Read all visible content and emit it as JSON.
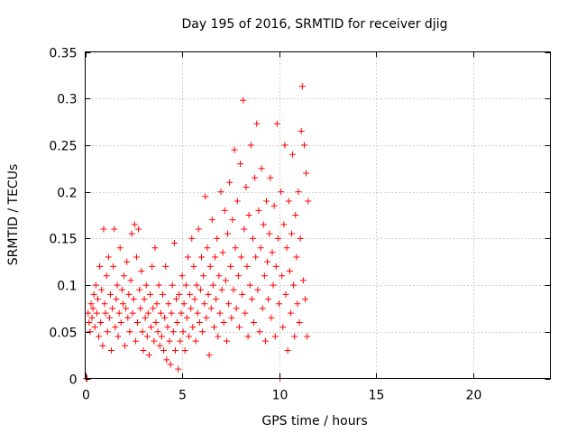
{
  "chart_data": {
    "type": "scatter",
    "title": "Day 195 of 2016, SRMTID for receiver djig",
    "xlabel": "GPS time / hours",
    "ylabel": "SRMTID / TECUs",
    "xlim": [
      0,
      24
    ],
    "ylim": [
      0,
      0.35
    ],
    "grid": true,
    "marker": "+",
    "color": "#ff0000",
    "x_ticks": [
      0,
      5,
      10,
      15,
      20
    ],
    "x_tick_labels": [
      "0",
      "5",
      "10",
      "15",
      "20"
    ],
    "y_ticks": [
      0,
      0.05,
      0.1,
      0.15,
      0.2,
      0.25,
      0.3,
      0.35
    ],
    "y_tick_labels": [
      "0",
      "0.05",
      "0.1",
      "0.15",
      "0.2",
      "0.25",
      "0.3",
      "0.35"
    ],
    "series": [
      {
        "name": "SRMTID",
        "points": [
          [
            0.05,
            0.0
          ],
          [
            0.1,
            0.0
          ],
          [
            0.15,
            0.07
          ],
          [
            0.2,
            0.06
          ],
          [
            0.25,
            0.05
          ],
          [
            0.3,
            0.08
          ],
          [
            0.35,
            0.065
          ],
          [
            0.4,
            0.075
          ],
          [
            0.45,
            0.09
          ],
          [
            0.5,
            0.055
          ],
          [
            0.55,
            0.1
          ],
          [
            0.6,
            0.07
          ],
          [
            0.65,
            0.085
          ],
          [
            0.7,
            0.045
          ],
          [
            0.75,
            0.12
          ],
          [
            0.8,
            0.06
          ],
          [
            0.85,
            0.095
          ],
          [
            0.9,
            0.035
          ],
          [
            0.95,
            0.16
          ],
          [
            1.0,
            0.08
          ],
          [
            1.05,
            0.07
          ],
          [
            1.1,
            0.11
          ],
          [
            1.15,
            0.05
          ],
          [
            1.2,
            0.13
          ],
          [
            1.25,
            0.065
          ],
          [
            1.3,
            0.09
          ],
          [
            1.35,
            0.03
          ],
          [
            1.4,
            0.075
          ],
          [
            1.45,
            0.12
          ],
          [
            1.5,
            0.16
          ],
          [
            1.55,
            0.055
          ],
          [
            1.6,
            0.085
          ],
          [
            1.65,
            0.1
          ],
          [
            1.7,
            0.045
          ],
          [
            1.75,
            0.07
          ],
          [
            1.8,
            0.14
          ],
          [
            1.85,
            0.06
          ],
          [
            1.9,
            0.095
          ],
          [
            1.95,
            0.08
          ],
          [
            2.0,
            0.11
          ],
          [
            2.05,
            0.035
          ],
          [
            2.1,
            0.075
          ],
          [
            2.15,
            0.125
          ],
          [
            2.2,
            0.065
          ],
          [
            2.25,
            0.09
          ],
          [
            2.3,
            0.05
          ],
          [
            2.35,
            0.105
          ],
          [
            2.4,
            0.155
          ],
          [
            2.45,
            0.07
          ],
          [
            2.5,
            0.085
          ],
          [
            2.55,
            0.165
          ],
          [
            2.6,
            0.04
          ],
          [
            2.65,
            0.13
          ],
          [
            2.7,
            0.06
          ],
          [
            2.75,
            0.16
          ],
          [
            2.8,
            0.095
          ],
          [
            2.85,
            0.075
          ],
          [
            2.9,
            0.115
          ],
          [
            2.95,
            0.05
          ],
          [
            3.0,
            0.03
          ],
          [
            3.05,
            0.085
          ],
          [
            3.1,
            0.065
          ],
          [
            3.15,
            0.1
          ],
          [
            3.2,
            0.045
          ],
          [
            3.25,
            0.07
          ],
          [
            3.3,
            0.025
          ],
          [
            3.35,
            0.09
          ],
          [
            3.4,
            0.055
          ],
          [
            3.45,
            0.12
          ],
          [
            3.5,
            0.075
          ],
          [
            3.55,
            0.04
          ],
          [
            3.6,
            0.14
          ],
          [
            3.65,
            0.06
          ],
          [
            3.7,
            0.08
          ],
          [
            3.75,
            0.05
          ],
          [
            3.8,
            0.1
          ],
          [
            3.85,
            0.035
          ],
          [
            3.9,
            0.07
          ],
          [
            3.95,
            0.045
          ],
          [
            4.0,
            0.09
          ],
          [
            4.05,
            0.03
          ],
          [
            4.1,
            0.065
          ],
          [
            4.15,
            0.12
          ],
          [
            4.2,
            0.02
          ],
          [
            4.25,
            0.055
          ],
          [
            4.3,
            0.08
          ],
          [
            4.35,
            0.04
          ],
          [
            4.4,
            0.015
          ],
          [
            4.45,
            0.07
          ],
          [
            4.5,
            0.1
          ],
          [
            4.55,
            0.05
          ],
          [
            4.6,
            0.145
          ],
          [
            4.65,
            0.03
          ],
          [
            4.7,
            0.085
          ],
          [
            4.75,
            0.06
          ],
          [
            4.8,
            0.01
          ],
          [
            4.85,
            0.09
          ],
          [
            4.9,
            0.04
          ],
          [
            4.95,
            0.07
          ],
          [
            5.0,
            0.11
          ],
          [
            5.05,
            0.05
          ],
          [
            5.1,
            0.08
          ],
          [
            5.15,
            0.03
          ],
          [
            5.2,
            0.1
          ],
          [
            5.25,
            0.065
          ],
          [
            5.3,
            0.13
          ],
          [
            5.35,
            0.045
          ],
          [
            5.4,
            0.09
          ],
          [
            5.45,
            0.075
          ],
          [
            5.5,
            0.15
          ],
          [
            5.55,
            0.055
          ],
          [
            5.6,
            0.12
          ],
          [
            5.65,
            0.085
          ],
          [
            5.7,
            0.04
          ],
          [
            5.75,
            0.1
          ],
          [
            5.8,
            0.07
          ],
          [
            5.85,
            0.16
          ],
          [
            5.9,
            0.06
          ],
          [
            5.95,
            0.095
          ],
          [
            6.0,
            0.13
          ],
          [
            6.05,
            0.05
          ],
          [
            6.1,
            0.11
          ],
          [
            6.15,
            0.08
          ],
          [
            6.2,
            0.195
          ],
          [
            6.25,
            0.065
          ],
          [
            6.3,
            0.14
          ],
          [
            6.35,
            0.09
          ],
          [
            6.4,
            0.025
          ],
          [
            6.45,
            0.12
          ],
          [
            6.5,
            0.075
          ],
          [
            6.55,
            0.17
          ],
          [
            6.6,
            0.1
          ],
          [
            6.65,
            0.055
          ],
          [
            6.7,
            0.13
          ],
          [
            6.75,
            0.085
          ],
          [
            6.8,
            0.15
          ],
          [
            6.85,
            0.045
          ],
          [
            6.9,
            0.11
          ],
          [
            6.95,
            0.07
          ],
          [
            7.0,
            0.2
          ],
          [
            7.05,
            0.095
          ],
          [
            7.1,
            0.135
          ],
          [
            7.15,
            0.06
          ],
          [
            7.2,
            0.18
          ],
          [
            7.25,
            0.105
          ],
          [
            7.3,
            0.04
          ],
          [
            7.35,
            0.155
          ],
          [
            7.4,
            0.08
          ],
          [
            7.45,
            0.21
          ],
          [
            7.5,
            0.12
          ],
          [
            7.55,
            0.065
          ],
          [
            7.6,
            0.17
          ],
          [
            7.65,
            0.095
          ],
          [
            7.7,
            0.245
          ],
          [
            7.75,
            0.14
          ],
          [
            7.8,
            0.075
          ],
          [
            7.85,
            0.19
          ],
          [
            7.9,
            0.11
          ],
          [
            7.95,
            0.055
          ],
          [
            8.0,
            0.23
          ],
          [
            8.05,
            0.13
          ],
          [
            8.1,
            0.09
          ],
          [
            8.15,
            0.298
          ],
          [
            8.2,
            0.16
          ],
          [
            8.25,
            0.07
          ],
          [
            8.3,
            0.205
          ],
          [
            8.35,
            0.12
          ],
          [
            8.4,
            0.045
          ],
          [
            8.45,
            0.175
          ],
          [
            8.5,
            0.1
          ],
          [
            8.55,
            0.25
          ],
          [
            8.6,
            0.085
          ],
          [
            8.65,
            0.15
          ],
          [
            8.7,
            0.06
          ],
          [
            8.75,
            0.215
          ],
          [
            8.8,
            0.13
          ],
          [
            8.85,
            0.273
          ],
          [
            8.9,
            0.095
          ],
          [
            8.95,
            0.18
          ],
          [
            9.0,
            0.05
          ],
          [
            9.05,
            0.14
          ],
          [
            9.1,
            0.225
          ],
          [
            9.15,
            0.075
          ],
          [
            9.2,
            0.165
          ],
          [
            9.25,
            0.11
          ],
          [
            9.3,
            0.04
          ],
          [
            9.35,
            0.19
          ],
          [
            9.4,
            0.125
          ],
          [
            9.45,
            0.085
          ],
          [
            9.5,
            0.155
          ],
          [
            9.55,
            0.215
          ],
          [
            9.6,
            0.065
          ],
          [
            9.65,
            0.135
          ],
          [
            9.7,
            0.1
          ],
          [
            9.75,
            0.185
          ],
          [
            9.8,
            0.045
          ],
          [
            9.85,
            0.12
          ],
          [
            9.9,
            0.273
          ],
          [
            9.95,
            0.15
          ],
          [
            10.0,
            0.08
          ],
          [
            10.05,
            0.0
          ],
          [
            10.1,
            0.2
          ],
          [
            10.15,
            0.11
          ],
          [
            10.2,
            0.055
          ],
          [
            10.25,
            0.165
          ],
          [
            10.3,
            0.25
          ],
          [
            10.35,
            0.09
          ],
          [
            10.4,
            0.14
          ],
          [
            10.45,
            0.03
          ],
          [
            10.5,
            0.19
          ],
          [
            10.55,
            0.115
          ],
          [
            10.6,
            0.07
          ],
          [
            10.65,
            0.155
          ],
          [
            10.7,
            0.24
          ],
          [
            10.75,
            0.1
          ],
          [
            10.8,
            0.045
          ],
          [
            10.85,
            0.175
          ],
          [
            10.9,
            0.13
          ],
          [
            10.95,
            0.08
          ],
          [
            11.0,
            0.2
          ],
          [
            11.05,
            0.06
          ],
          [
            11.1,
            0.15
          ],
          [
            11.15,
            0.265
          ],
          [
            11.2,
            0.313
          ],
          [
            11.25,
            0.105
          ],
          [
            11.3,
            0.25
          ],
          [
            11.35,
            0.085
          ],
          [
            11.4,
            0.22
          ],
          [
            11.45,
            0.045
          ],
          [
            11.5,
            0.19
          ]
        ]
      }
    ]
  }
}
